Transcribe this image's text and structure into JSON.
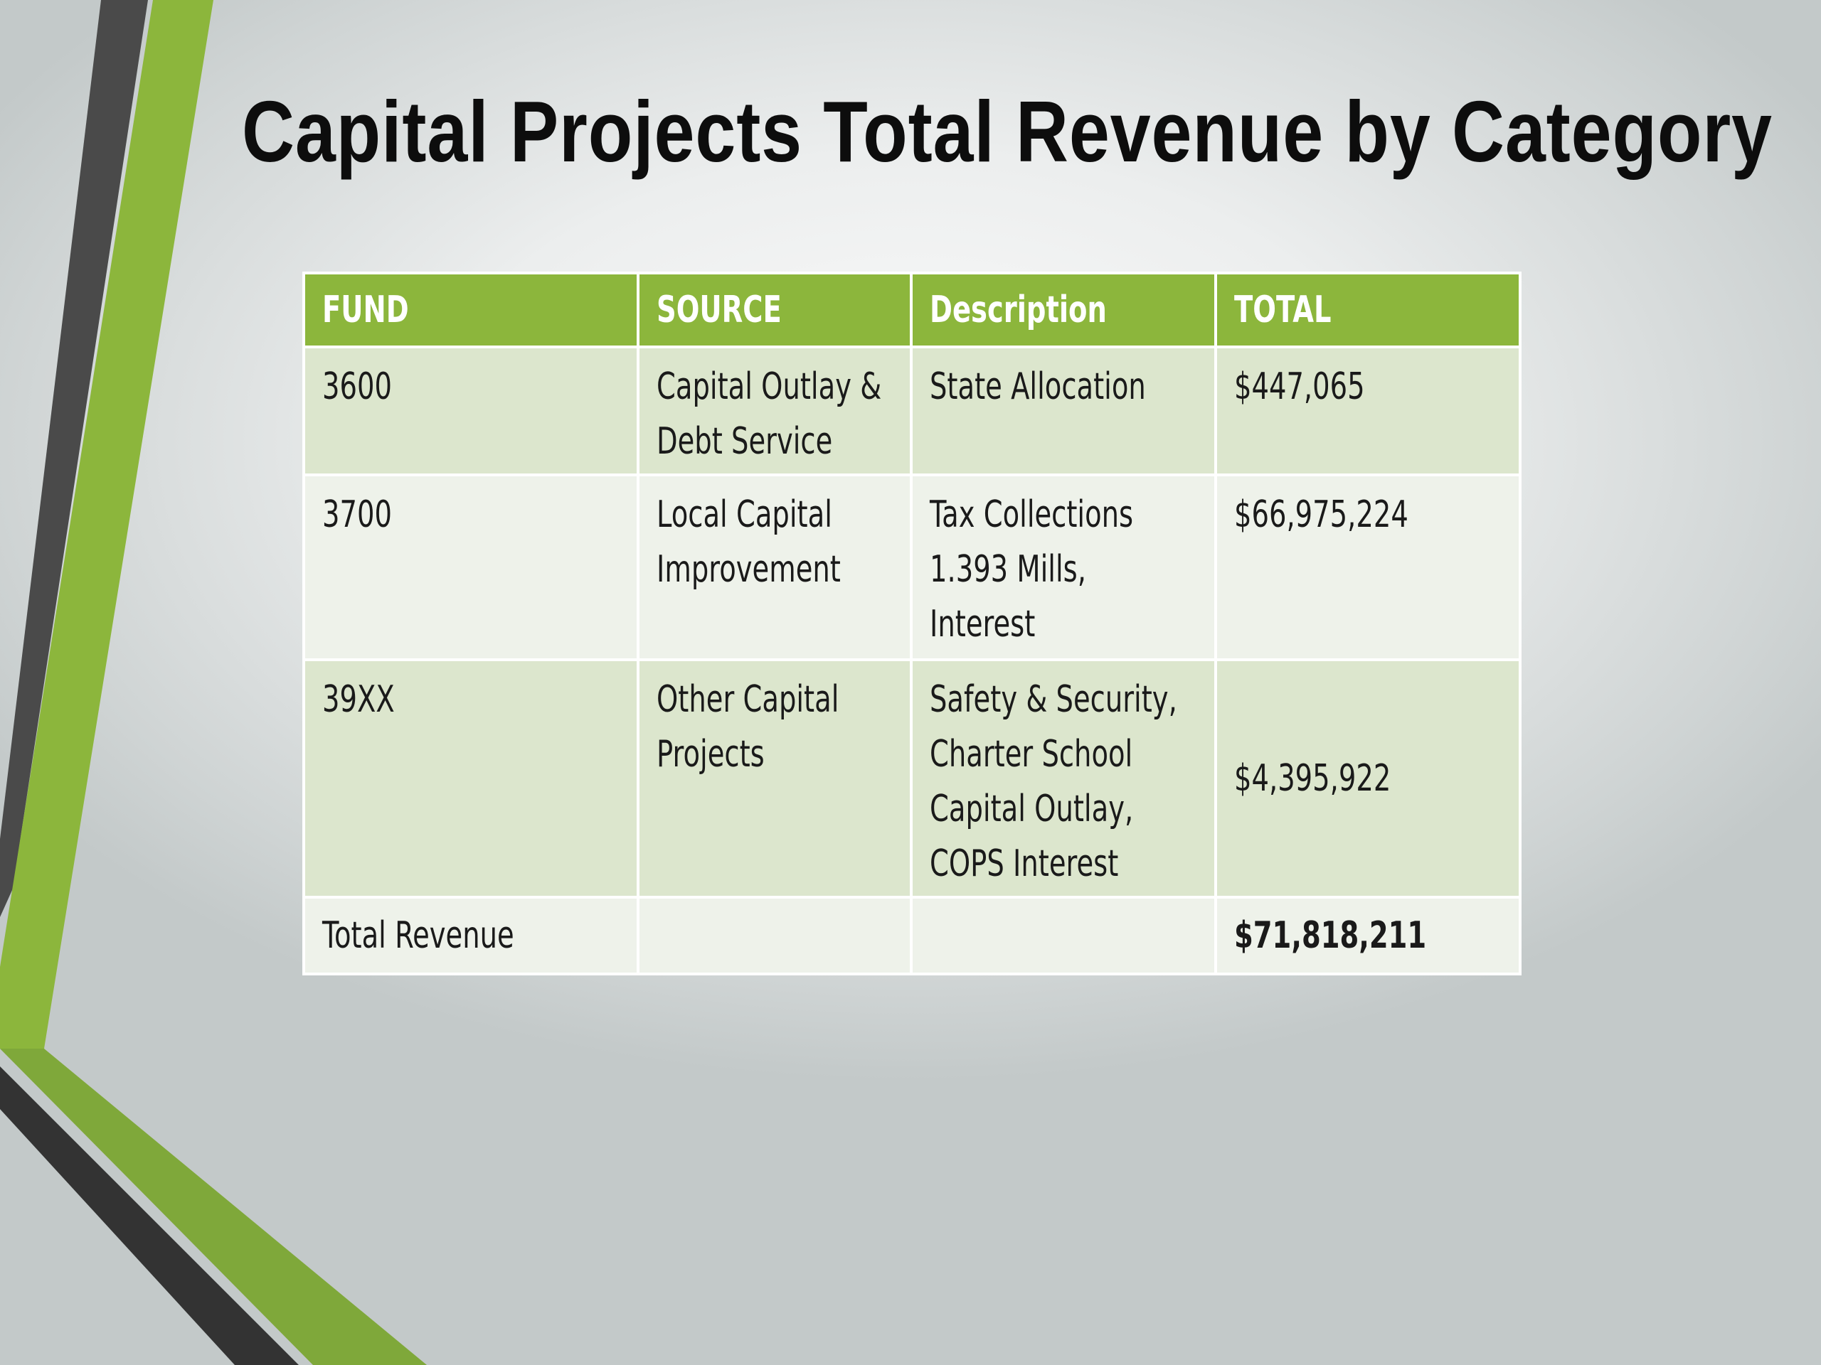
{
  "slide": {
    "title": "Capital Projects Total Revenue by Category",
    "accent_color": "#8cb63c",
    "dark_color": "#444444"
  },
  "table": {
    "headers": [
      "FUND",
      "SOURCE",
      "Description",
      "TOTAL"
    ],
    "rows": [
      {
        "fund": "3600",
        "source": [
          "Capital Outlay &",
          "Debt Service"
        ],
        "description": [
          "State Allocation"
        ],
        "total": "$447,065"
      },
      {
        "fund": "3700",
        "source": [
          "Local Capital",
          "Improvement"
        ],
        "description": [
          "Tax Collections",
          "1.393 Mills,",
          "Interest"
        ],
        "total": "$66,975,224"
      },
      {
        "fund": "39XX",
        "source": [
          "Other Capital",
          "Projects"
        ],
        "description": [
          "Safety & Security,",
          "Charter School",
          "Capital Outlay,",
          "COPS Interest"
        ],
        "total": "$4,395,922"
      }
    ],
    "total_row": {
      "label": "Total Revenue",
      "source": "",
      "description": "",
      "total": "$71,818,211"
    }
  }
}
